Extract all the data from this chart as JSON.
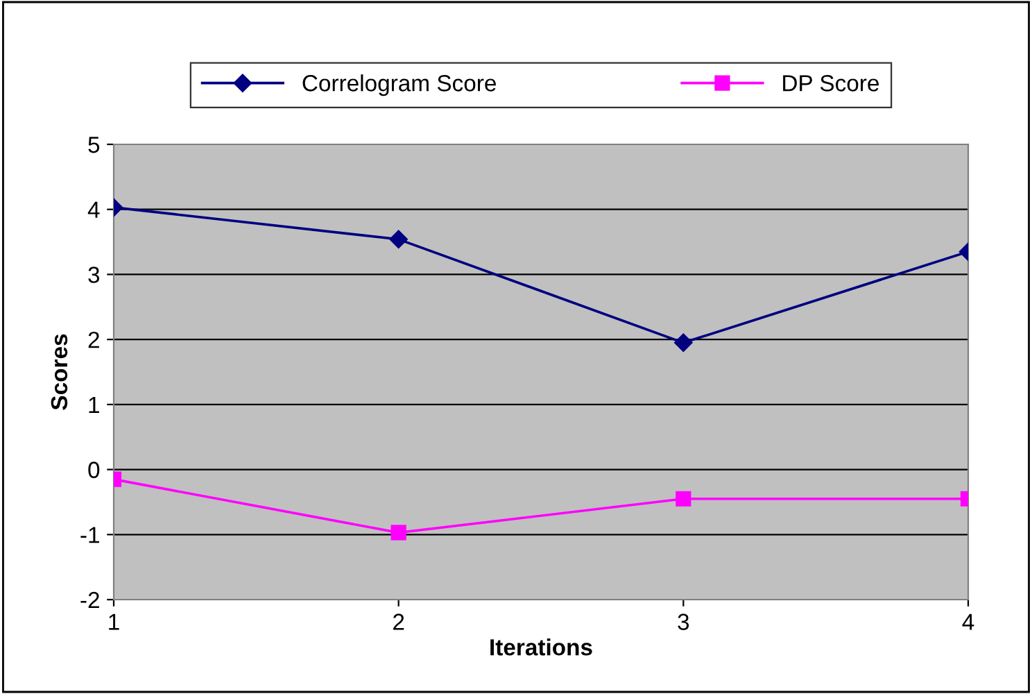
{
  "chart_data": {
    "type": "line",
    "xlabel": "Iterations",
    "ylabel": "Scores",
    "x": [
      1,
      2,
      3,
      4
    ],
    "series": [
      {
        "name": "Correlogram Score",
        "color": "#000080",
        "marker": "diamond",
        "values": [
          4.03,
          3.54,
          1.95,
          3.35
        ]
      },
      {
        "name": "DP Score",
        "color": "#ff00ff",
        "marker": "square",
        "values": [
          -0.15,
          -0.97,
          -0.45,
          -0.45
        ]
      }
    ],
    "xlim": [
      1,
      4
    ],
    "xticks": [
      1,
      2,
      3,
      4
    ],
    "ylim": [
      -2,
      5
    ],
    "yticks": [
      -2,
      -1,
      0,
      1,
      2,
      3,
      4,
      5
    ],
    "grid": "y",
    "legend": "top",
    "line_style": "solid"
  }
}
